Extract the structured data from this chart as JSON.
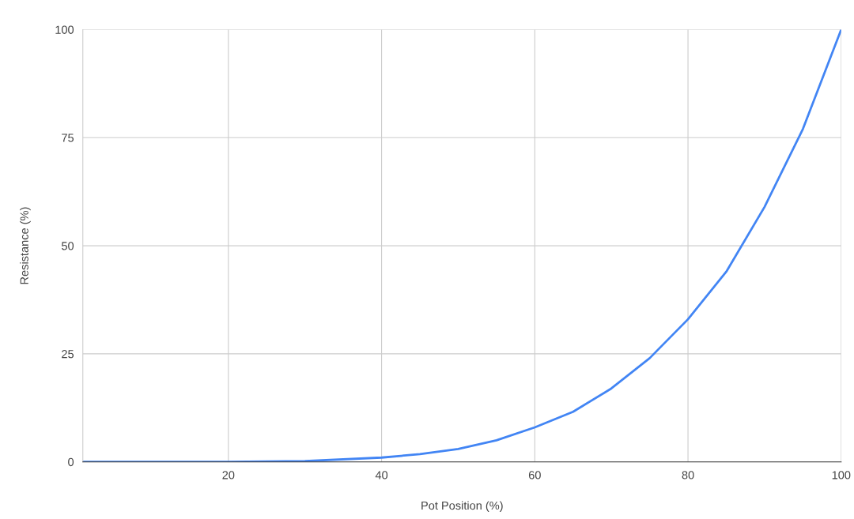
{
  "chart_data": {
    "type": "line",
    "xlabel": "Pot Position (%)",
    "ylabel": "Resistance (%)",
    "x": [
      1,
      10,
      20,
      30,
      40,
      45,
      50,
      55,
      60,
      65,
      70,
      75,
      80,
      85,
      90,
      95,
      100
    ],
    "series": [
      {
        "color": "#4285f4",
        "values": [
          0,
          0,
          0,
          0.2,
          1,
          1.8,
          3,
          5,
          8,
          11.6,
          17,
          24,
          33,
          44,
          59,
          77,
          100
        ]
      }
    ],
    "xlim": [
      1,
      100
    ],
    "xticks": [
      20,
      40,
      60,
      80,
      100
    ],
    "ylim": [
      0,
      100
    ],
    "yticks": [
      0,
      25,
      50,
      75,
      100
    ],
    "grid": true,
    "marker": "none",
    "line_style": "solid",
    "legend": false
  }
}
